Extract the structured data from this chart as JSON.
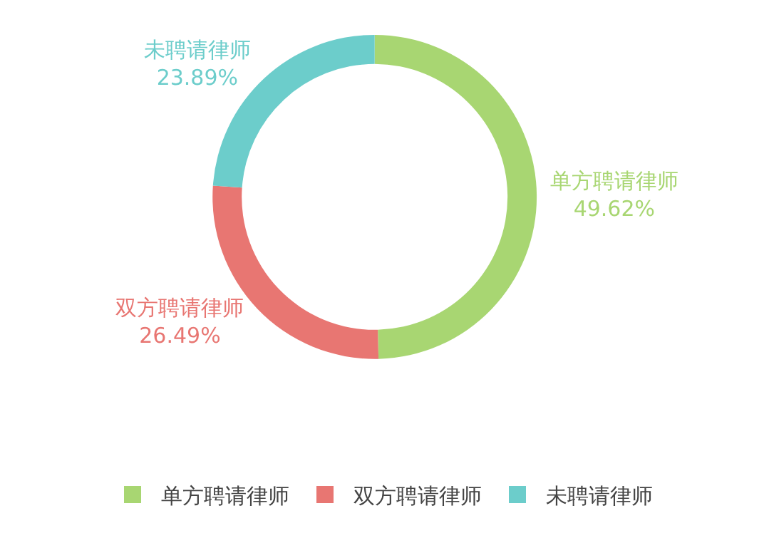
{
  "chart_data": {
    "type": "donut",
    "categories": [
      "单方聘请律师",
      "双方聘请律师",
      "未聘请律师"
    ],
    "values": [
      49.62,
      26.49,
      23.89
    ],
    "value_labels": [
      "49.62%",
      "26.49%",
      "23.89%"
    ],
    "colors": [
      "#a8d672",
      "#e87672",
      "#6ccdcb"
    ],
    "legend": "bottom"
  }
}
